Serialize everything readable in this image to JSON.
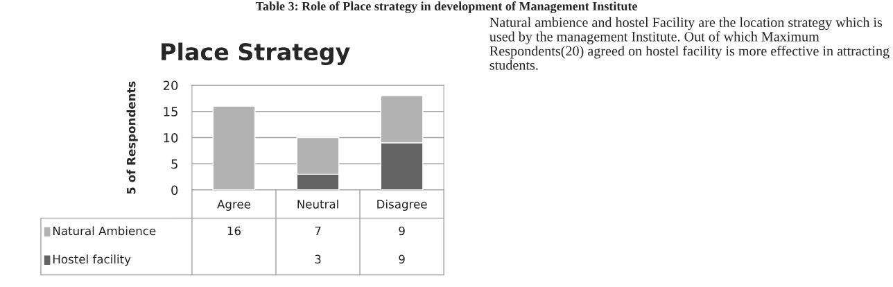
{
  "chart_data": {
    "type": "bar",
    "title": "Place Strategy",
    "ylabel": "5 of Respondents",
    "annotations": [
      "Table 3: Role of Place strategy in development of Management Institute",
      "Natural ambience and hostel Facility are the location strategy which is used by the management Institute. Out of which Maximum Respondents(20) agreed on hostel facility is more effective in attracting students."
    ],
    "categories": [
      "Agree",
      "Neutral",
      "Disagree"
    ],
    "series": [
      {
        "name": "Hostel facility",
        "color": "#636363",
        "values": [
          null,
          3,
          9
        ]
      },
      {
        "name": "Natural Ambience",
        "color": "#b2b2b2",
        "values": [
          16,
          7,
          9
        ]
      }
    ],
    "stacked": true,
    "ylim": [
      0,
      20
    ],
    "yticks": [
      0,
      5,
      10,
      15,
      20
    ],
    "grid": "y",
    "legend": "bottom",
    "data_labels": true
  }
}
